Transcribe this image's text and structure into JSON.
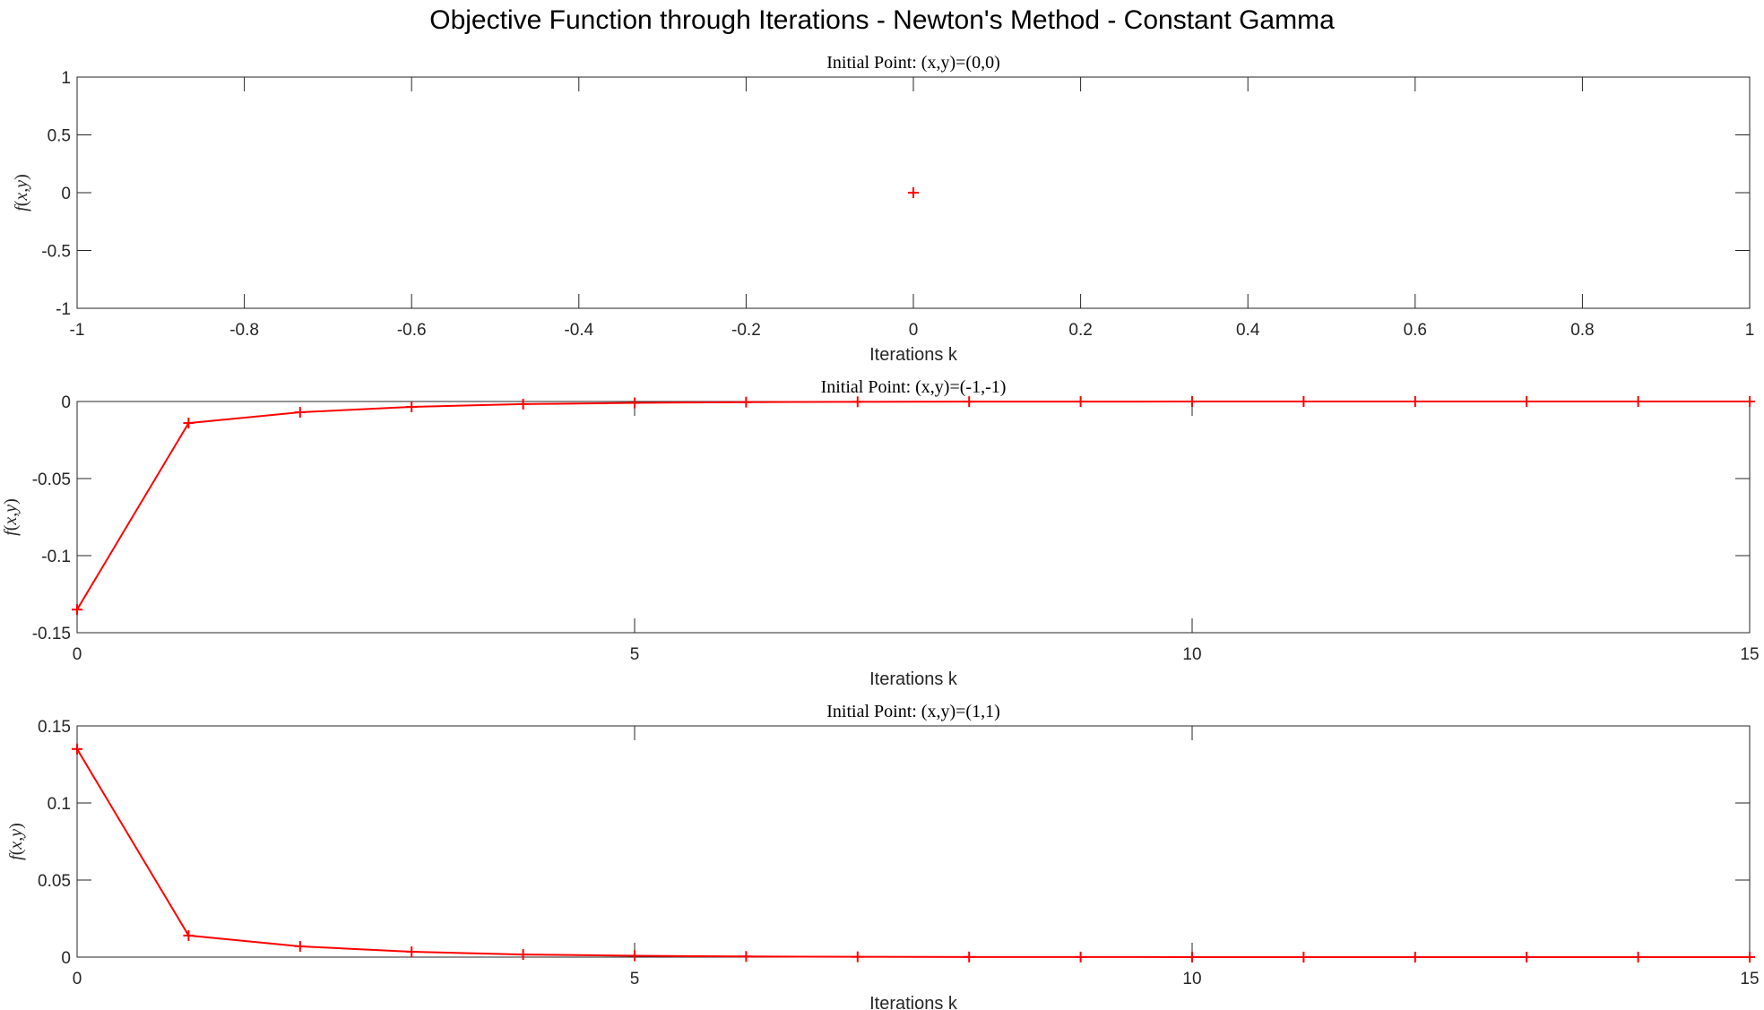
{
  "figure_title": "Objective Function through Iterations - Newton's Method - Constant Gamma",
  "chart_data": [
    {
      "type": "line",
      "title": "Initial Point: (x,y)=(0,0)",
      "xlabel": "Iterations k",
      "ylabel": "f(x,y)",
      "xlim": [
        -1,
        1
      ],
      "ylim": [
        -1,
        1
      ],
      "xticks": [
        -1,
        -0.8,
        -0.6,
        -0.4,
        -0.2,
        0,
        0.2,
        0.4,
        0.6,
        0.8,
        1
      ],
      "xtick_labels": [
        "-1",
        "-0.8",
        "-0.6",
        "-0.4",
        "-0.2",
        "0",
        "0.2",
        "0.4",
        "0.6",
        "0.8",
        "1"
      ],
      "yticks": [
        -1,
        -0.5,
        0,
        0.5,
        1
      ],
      "ytick_labels": [
        "-1",
        "-0.5",
        "0",
        "0.5",
        "1"
      ],
      "series": [
        {
          "x": [
            0
          ],
          "values": [
            0
          ],
          "color": "#ff0000",
          "marker": "+"
        }
      ],
      "grid": false
    },
    {
      "type": "line",
      "title": "Initial Point: (x,y)=(-1,-1)",
      "xlabel": "Iterations k",
      "ylabel": "f(x,y)",
      "xlim": [
        0,
        15
      ],
      "ylim": [
        -0.15,
        0
      ],
      "xticks": [
        0,
        5,
        10,
        15
      ],
      "xtick_labels": [
        "0",
        "5",
        "10",
        "15"
      ],
      "yticks": [
        -0.15,
        -0.1,
        -0.05,
        0
      ],
      "ytick_labels": [
        "-0.15",
        "-0.1",
        "-0.05",
        "0"
      ],
      "series": [
        {
          "x": [
            0,
            1,
            2,
            3,
            4,
            5,
            6,
            7,
            8,
            9,
            10,
            11,
            12,
            13,
            14,
            15
          ],
          "values": [
            -0.135,
            -0.014,
            -0.007,
            -0.0035,
            -0.0017,
            -0.0009,
            -0.0004,
            -0.0002,
            -0.0001,
            -5e-05,
            -3e-05,
            -1e-05,
            0,
            0,
            0,
            0
          ],
          "color": "#ff0000",
          "marker": "+"
        }
      ],
      "grid": false
    },
    {
      "type": "line",
      "title": "Initial Point: (x,y)=(1,1)",
      "xlabel": "Iterations k",
      "ylabel": "f(x,y)",
      "xlim": [
        0,
        15
      ],
      "ylim": [
        0,
        0.15
      ],
      "xticks": [
        0,
        5,
        10,
        15
      ],
      "xtick_labels": [
        "0",
        "5",
        "10",
        "15"
      ],
      "yticks": [
        0,
        0.05,
        0.1,
        0.15
      ],
      "ytick_labels": [
        "0",
        "0.05",
        "0.1",
        "0.15"
      ],
      "series": [
        {
          "x": [
            0,
            1,
            2,
            3,
            4,
            5,
            6,
            7,
            8,
            9,
            10,
            11,
            12,
            13,
            14,
            15
          ],
          "values": [
            0.135,
            0.014,
            0.007,
            0.0035,
            0.0017,
            0.0009,
            0.0004,
            0.0002,
            0.0001,
            5e-05,
            3e-05,
            1e-05,
            0,
            0,
            0,
            0
          ],
          "color": "#ff0000",
          "marker": "+"
        }
      ],
      "grid": false
    }
  ]
}
